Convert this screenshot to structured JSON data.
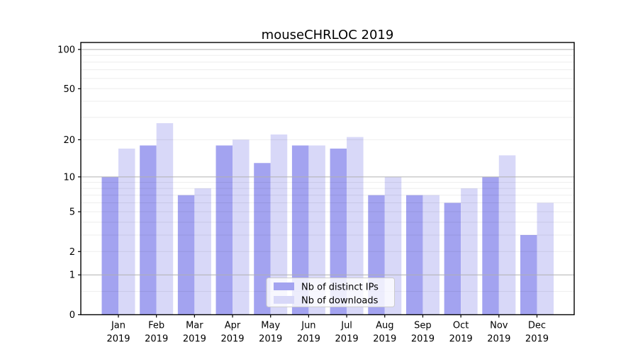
{
  "figure": {
    "background": "#ffffff"
  },
  "chart_data": {
    "type": "bar",
    "title": "mouseCHRLOC 2019",
    "categories": [
      "Jan",
      "Feb",
      "Mar",
      "Apr",
      "May",
      "Jun",
      "Jul",
      "Aug",
      "Sep",
      "Oct",
      "Nov",
      "Dec"
    ],
    "x_tick_year": "2019",
    "series": [
      {
        "name": "Nb of distinct IPs",
        "key": "distinct-ips",
        "color": "#a3a3f0",
        "values": [
          10,
          18,
          7,
          18,
          13,
          18,
          17,
          7,
          7,
          6,
          10,
          3
        ]
      },
      {
        "name": "Nb of downloads",
        "key": "downloads",
        "color": "#d8d8f8",
        "values": [
          17,
          27,
          8,
          20,
          22,
          18,
          21,
          10,
          7,
          8,
          15,
          6
        ]
      }
    ],
    "y_axis": {
      "scale": "log1p",
      "ticks": [
        0,
        1,
        2,
        5,
        10,
        20,
        50,
        100
      ],
      "major_gridlines": [
        1,
        10,
        100
      ],
      "minor_gridlines": [
        0.5,
        2,
        3,
        4,
        5,
        6,
        7,
        8,
        9,
        20,
        30,
        40,
        50,
        60,
        70,
        80,
        90
      ],
      "max": 113
    },
    "legend_position": "lower center",
    "grid": "horizontal",
    "colors": {
      "major_grid": "#b0b0b0",
      "minor_grid": "rgba(0,0,0,0.07)",
      "spine": "#000000",
      "legend_border": "#cccccc",
      "legend_background": "rgba(255,255,255,0.8)"
    }
  }
}
